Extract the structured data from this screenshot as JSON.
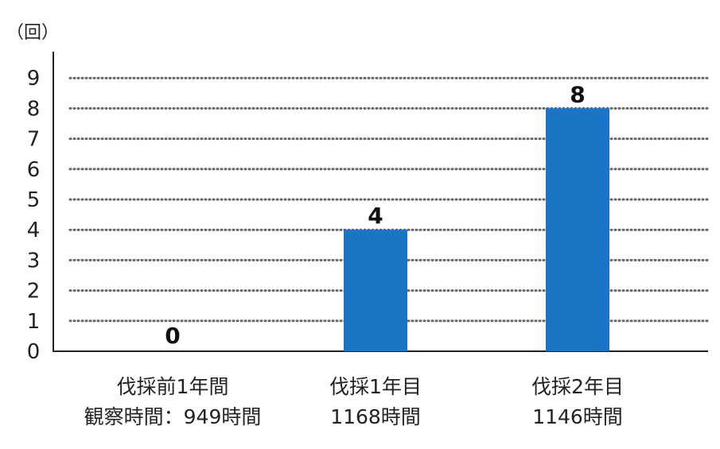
{
  "chart_data": {
    "type": "bar",
    "unit": "（回）",
    "ylim": [
      0,
      9
    ],
    "yticks": [
      0,
      1,
      2,
      3,
      4,
      5,
      6,
      7,
      8,
      9
    ],
    "grid": true,
    "bar_color": "#1a75c4",
    "categories": [
      {
        "line1": "伐採前1年間",
        "line2": "観察時間：949時間"
      },
      {
        "line1": "伐採1年目",
        "line2": "1168時間"
      },
      {
        "line1": "伐採2年目",
        "line2": "1146時間"
      }
    ],
    "values": [
      0,
      4,
      8
    ],
    "value_labels": [
      "0",
      "4",
      "8"
    ]
  }
}
